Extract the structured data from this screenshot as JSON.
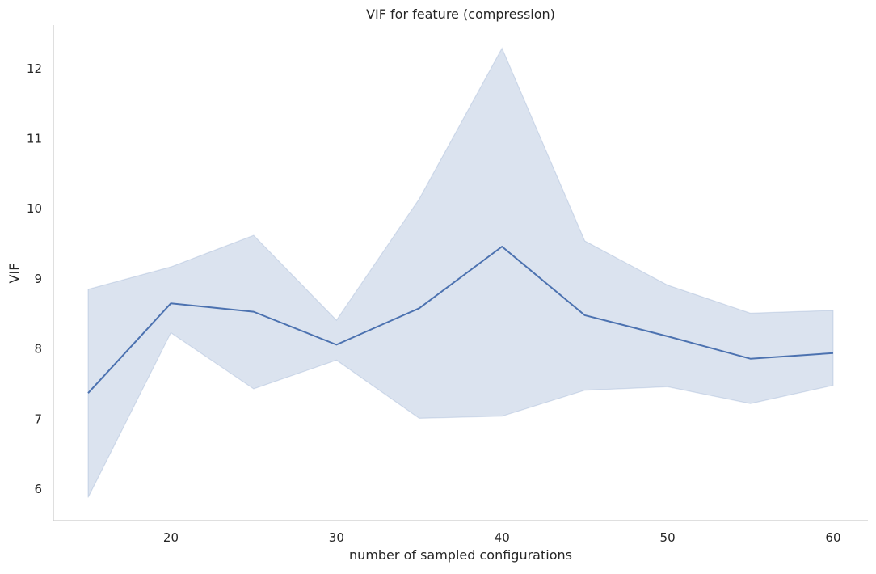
{
  "chart_data": {
    "type": "line",
    "title": "VIF for feature (compression)",
    "xlabel": "number of sampled configurations",
    "ylabel": "VIF",
    "xlim": [
      12.9,
      62.1
    ],
    "ylim": [
      5.55,
      12.62
    ],
    "x_ticks": [
      20,
      30,
      40,
      50,
      60
    ],
    "y_ticks": [
      6,
      7,
      8,
      9,
      10,
      11,
      12
    ],
    "grid": false,
    "legend": "none",
    "series": [
      {
        "x": [
          15,
          20,
          25,
          30,
          35,
          40,
          45,
          50,
          55,
          60
        ],
        "y": [
          7.37,
          8.65,
          8.53,
          8.06,
          8.58,
          9.46,
          8.48,
          8.18,
          7.86,
          7.94
        ],
        "ci_lower": [
          5.88,
          8.23,
          7.43,
          7.84,
          7.01,
          7.04,
          7.41,
          7.46,
          7.22,
          7.48
        ],
        "ci_upper": [
          8.85,
          9.17,
          9.62,
          8.41,
          10.14,
          12.29,
          9.54,
          8.91,
          8.51,
          8.55
        ],
        "color": "#4c72b0",
        "band_color": "#4c72b0"
      }
    ]
  }
}
